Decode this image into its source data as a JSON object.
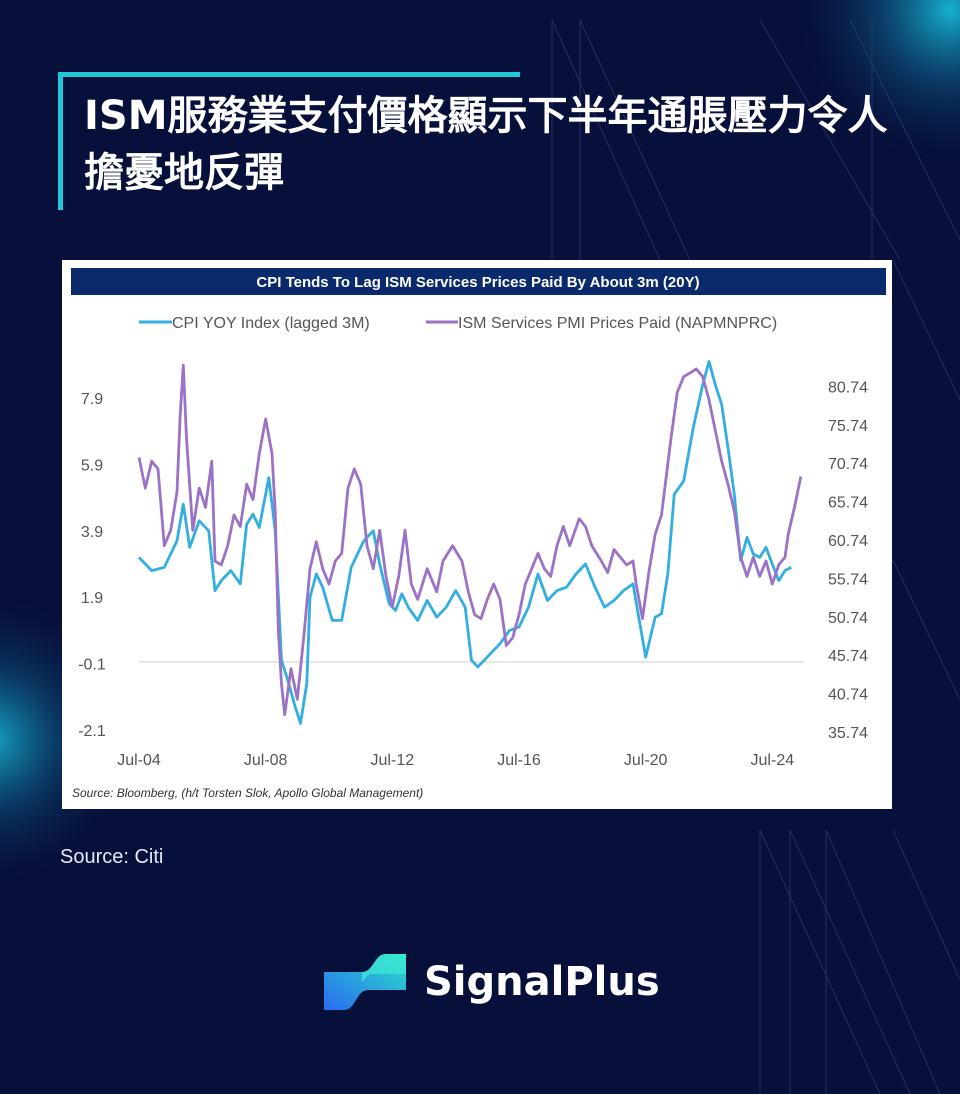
{
  "page_title": "ISM服務業支付價格顯示下半年通脹壓力令人擔憂地反彈",
  "footer_source": "Source: Citi",
  "brand_name": "SignalPlus",
  "colors": {
    "background": "#07103a",
    "accent": "#1ec8d6",
    "header_band": "#0a2a6b",
    "cpi_line": "#33aee0",
    "ism_line": "#9b72c6"
  },
  "chart_data": {
    "type": "line",
    "title": "CPI Tends To Lag ISM Services Prices Paid By About 3m (20Y)",
    "source_note": "Source: Bloomberg, (h/t Torsten Slok, Apollo Global Management)",
    "x_labels": [
      "Jul-04",
      "Jul-08",
      "Jul-12",
      "Jul-16",
      "Jul-20",
      "Jul-24"
    ],
    "x_range": [
      2004.5,
      2025.5
    ],
    "left_axis": {
      "ticks": [
        "7.9",
        "5.9",
        "3.9",
        "1.9",
        "-0.1",
        "-2.1"
      ],
      "range": [
        -2.1,
        7.9
      ]
    },
    "right_axis": {
      "ticks": [
        "80.74",
        "75.74",
        "70.74",
        "65.74",
        "60.74",
        "55.74",
        "50.74",
        "45.74",
        "40.74",
        "35.74"
      ],
      "range": [
        35.74,
        80.74
      ]
    },
    "zero_line": 0,
    "legend_position": "top",
    "series": [
      {
        "name": "CPI YOY Index (lagged 3M)",
        "axis": "left",
        "color": "#33aee0",
        "points": [
          [
            2004.5,
            3.1
          ],
          [
            2004.9,
            2.7
          ],
          [
            2005.3,
            2.8
          ],
          [
            2005.7,
            3.6
          ],
          [
            2005.9,
            4.7
          ],
          [
            2006.1,
            3.4
          ],
          [
            2006.4,
            4.2
          ],
          [
            2006.7,
            3.9
          ],
          [
            2006.9,
            2.1
          ],
          [
            2007.1,
            2.4
          ],
          [
            2007.4,
            2.7
          ],
          [
            2007.7,
            2.3
          ],
          [
            2007.9,
            4.1
          ],
          [
            2008.1,
            4.4
          ],
          [
            2008.3,
            4.0
          ],
          [
            2008.6,
            5.5
          ],
          [
            2008.8,
            3.9
          ],
          [
            2009.0,
            0.0
          ],
          [
            2009.2,
            -0.6
          ],
          [
            2009.4,
            -1.3
          ],
          [
            2009.6,
            -1.9
          ],
          [
            2009.8,
            -0.7
          ],
          [
            2009.9,
            1.9
          ],
          [
            2010.1,
            2.6
          ],
          [
            2010.3,
            2.2
          ],
          [
            2010.6,
            1.2
          ],
          [
            2010.9,
            1.2
          ],
          [
            2011.2,
            2.8
          ],
          [
            2011.6,
            3.6
          ],
          [
            2011.9,
            3.9
          ],
          [
            2012.1,
            2.9
          ],
          [
            2012.4,
            1.7
          ],
          [
            2012.6,
            1.5
          ],
          [
            2012.8,
            2.0
          ],
          [
            2013.0,
            1.6
          ],
          [
            2013.3,
            1.2
          ],
          [
            2013.6,
            1.8
          ],
          [
            2013.9,
            1.3
          ],
          [
            2014.2,
            1.6
          ],
          [
            2014.5,
            2.1
          ],
          [
            2014.8,
            1.6
          ],
          [
            2015.0,
            0.0
          ],
          [
            2015.2,
            -0.2
          ],
          [
            2015.4,
            0.0
          ],
          [
            2015.6,
            0.2
          ],
          [
            2015.9,
            0.5
          ],
          [
            2016.2,
            0.9
          ],
          [
            2016.5,
            1.0
          ],
          [
            2016.8,
            1.6
          ],
          [
            2017.1,
            2.6
          ],
          [
            2017.4,
            1.8
          ],
          [
            2017.7,
            2.1
          ],
          [
            2018.0,
            2.2
          ],
          [
            2018.3,
            2.6
          ],
          [
            2018.6,
            2.9
          ],
          [
            2018.9,
            2.2
          ],
          [
            2019.2,
            1.6
          ],
          [
            2019.5,
            1.8
          ],
          [
            2019.8,
            2.1
          ],
          [
            2020.1,
            2.3
          ],
          [
            2020.3,
            1.2
          ],
          [
            2020.5,
            0.1
          ],
          [
            2020.8,
            1.3
          ],
          [
            2021.0,
            1.4
          ],
          [
            2021.2,
            2.6
          ],
          [
            2021.4,
            5.0
          ],
          [
            2021.7,
            5.4
          ],
          [
            2022.0,
            7.0
          ],
          [
            2022.3,
            8.3
          ],
          [
            2022.5,
            9.0
          ],
          [
            2022.7,
            8.3
          ],
          [
            2022.9,
            7.7
          ],
          [
            2023.1,
            6.4
          ],
          [
            2023.3,
            5.0
          ],
          [
            2023.5,
            3.0
          ],
          [
            2023.7,
            3.7
          ],
          [
            2023.9,
            3.2
          ],
          [
            2024.1,
            3.1
          ],
          [
            2024.3,
            3.4
          ],
          [
            2024.5,
            2.9
          ],
          [
            2024.7,
            2.4
          ],
          [
            2024.9,
            2.7
          ],
          [
            2025.1,
            2.8
          ]
        ]
      },
      {
        "name": "ISM Services PMI Prices Paid (NAPMNPRC)",
        "axis": "right",
        "color": "#9b72c6",
        "points": [
          [
            2004.5,
            71.5
          ],
          [
            2004.7,
            67.5
          ],
          [
            2004.9,
            71.0
          ],
          [
            2005.1,
            70.0
          ],
          [
            2005.3,
            60.0
          ],
          [
            2005.5,
            62.0
          ],
          [
            2005.7,
            67.0
          ],
          [
            2005.8,
            77.0
          ],
          [
            2005.9,
            83.5
          ],
          [
            2006.0,
            74.0
          ],
          [
            2006.2,
            62.0
          ],
          [
            2006.4,
            67.5
          ],
          [
            2006.6,
            65.0
          ],
          [
            2006.8,
            71.0
          ],
          [
            2006.9,
            58.0
          ],
          [
            2007.1,
            57.5
          ],
          [
            2007.3,
            60.0
          ],
          [
            2007.5,
            64.0
          ],
          [
            2007.7,
            62.5
          ],
          [
            2007.9,
            68.0
          ],
          [
            2008.1,
            66.0
          ],
          [
            2008.3,
            72.0
          ],
          [
            2008.5,
            76.5
          ],
          [
            2008.7,
            72.0
          ],
          [
            2008.8,
            64.5
          ],
          [
            2008.9,
            49.0
          ],
          [
            2009.0,
            42.0
          ],
          [
            2009.1,
            38.0
          ],
          [
            2009.3,
            44.0
          ],
          [
            2009.5,
            40.0
          ],
          [
            2009.7,
            48.0
          ],
          [
            2009.9,
            57.0
          ],
          [
            2010.1,
            60.5
          ],
          [
            2010.3,
            57.0
          ],
          [
            2010.5,
            55.0
          ],
          [
            2010.7,
            58.0
          ],
          [
            2010.9,
            59.0
          ],
          [
            2011.1,
            67.5
          ],
          [
            2011.3,
            70.0
          ],
          [
            2011.5,
            68.0
          ],
          [
            2011.7,
            60.0
          ],
          [
            2011.9,
            57.0
          ],
          [
            2012.1,
            62.0
          ],
          [
            2012.3,
            56.0
          ],
          [
            2012.5,
            52.0
          ],
          [
            2012.7,
            56.0
          ],
          [
            2012.9,
            62.0
          ],
          [
            2013.1,
            55.0
          ],
          [
            2013.3,
            53.0
          ],
          [
            2013.6,
            57.0
          ],
          [
            2013.9,
            54.0
          ],
          [
            2014.1,
            58.0
          ],
          [
            2014.4,
            60.0
          ],
          [
            2014.7,
            58.0
          ],
          [
            2014.9,
            54.0
          ],
          [
            2015.1,
            51.0
          ],
          [
            2015.3,
            50.5
          ],
          [
            2015.5,
            53.0
          ],
          [
            2015.7,
            55.0
          ],
          [
            2015.9,
            53.0
          ],
          [
            2016.1,
            47.0
          ],
          [
            2016.3,
            48.0
          ],
          [
            2016.5,
            51.0
          ],
          [
            2016.7,
            55.0
          ],
          [
            2016.9,
            57.0
          ],
          [
            2017.1,
            59.0
          ],
          [
            2017.3,
            57.0
          ],
          [
            2017.5,
            56.0
          ],
          [
            2017.7,
            60.0
          ],
          [
            2017.9,
            62.5
          ],
          [
            2018.1,
            60.0
          ],
          [
            2018.4,
            63.5
          ],
          [
            2018.6,
            62.5
          ],
          [
            2018.8,
            60.0
          ],
          [
            2019.1,
            58.0
          ],
          [
            2019.3,
            56.5
          ],
          [
            2019.5,
            59.5
          ],
          [
            2019.7,
            58.5
          ],
          [
            2019.9,
            57.5
          ],
          [
            2020.1,
            58.0
          ],
          [
            2020.2,
            55.0
          ],
          [
            2020.4,
            50.5
          ],
          [
            2020.6,
            56.5
          ],
          [
            2020.8,
            61.5
          ],
          [
            2021.0,
            64.0
          ],
          [
            2021.3,
            74.0
          ],
          [
            2021.5,
            80.0
          ],
          [
            2021.7,
            82.0
          ],
          [
            2021.9,
            82.5
          ],
          [
            2022.1,
            83.0
          ],
          [
            2022.3,
            82.0
          ],
          [
            2022.5,
            79.0
          ],
          [
            2022.7,
            75.0
          ],
          [
            2022.9,
            71.0
          ],
          [
            2023.1,
            68.0
          ],
          [
            2023.3,
            64.5
          ],
          [
            2023.5,
            58.5
          ],
          [
            2023.7,
            56.0
          ],
          [
            2023.9,
            58.5
          ],
          [
            2024.1,
            56.0
          ],
          [
            2024.3,
            58.0
          ],
          [
            2024.5,
            55.0
          ],
          [
            2024.7,
            57.5
          ],
          [
            2024.9,
            58.5
          ],
          [
            2025.0,
            61.5
          ],
          [
            2025.2,
            65.0
          ],
          [
            2025.4,
            69.0
          ]
        ]
      }
    ]
  }
}
